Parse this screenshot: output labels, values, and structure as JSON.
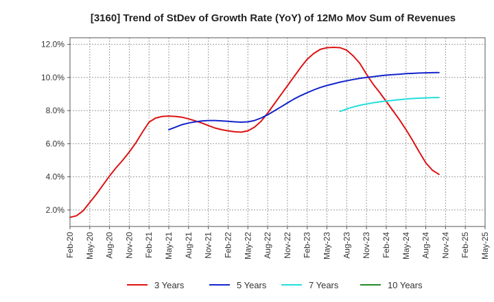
{
  "chart_data": {
    "type": "line",
    "title": "[3160]  Trend of StDev of Growth Rate (YoY) of 12Mo Mov Sum of Revenues",
    "xlabel": "",
    "ylabel": "",
    "x_ticks": [
      "Feb-20",
      "May-20",
      "Aug-20",
      "Nov-20",
      "Feb-21",
      "May-21",
      "Aug-21",
      "Nov-21",
      "Feb-22",
      "May-22",
      "Aug-22",
      "Nov-22",
      "Feb-23",
      "May-23",
      "Aug-23",
      "Nov-23",
      "Feb-24",
      "May-24",
      "Aug-24",
      "Nov-24",
      "Feb-25",
      "May-25"
    ],
    "y_ticks": [
      "2.0%",
      "4.0%",
      "6.0%",
      "8.0%",
      "10.0%",
      "12.0%"
    ],
    "y_tick_values": [
      2,
      4,
      6,
      8,
      10,
      12
    ],
    "ylim": [
      1,
      12.4
    ],
    "x_range_months": [
      0,
      63
    ],
    "grid": true,
    "legend_position": "bottom",
    "series": [
      {
        "name": "3 Years",
        "color": "#dd1111",
        "x_months": [
          0,
          1,
          2,
          3,
          4,
          5,
          6,
          7,
          8,
          9,
          10,
          11,
          12,
          13,
          14,
          15,
          16,
          17,
          18,
          19,
          20,
          21,
          22,
          23,
          24,
          25,
          26,
          27,
          28,
          29,
          30,
          31,
          32,
          33,
          34,
          35,
          36,
          37,
          38,
          39,
          40,
          41,
          42,
          43,
          44,
          45,
          46,
          47,
          48,
          49,
          50,
          51,
          52,
          53,
          54,
          55,
          56,
          57,
          58,
          59,
          60,
          61,
          62,
          63
        ],
        "values": [
          1.55,
          1.65,
          1.95,
          2.45,
          2.95,
          3.5,
          4.05,
          4.55,
          5.0,
          5.5,
          6.05,
          6.7,
          7.3,
          7.55,
          7.65,
          7.67,
          7.65,
          7.6,
          7.5,
          7.38,
          7.25,
          7.1,
          6.95,
          6.85,
          6.78,
          6.72,
          6.7,
          6.78,
          7.0,
          7.35,
          7.85,
          8.4,
          8.95,
          9.5,
          10.05,
          10.6,
          11.1,
          11.45,
          11.7,
          11.8,
          11.82,
          11.8,
          11.65,
          11.3,
          10.85,
          10.2,
          9.6,
          9.1,
          8.55,
          8.0,
          7.45,
          6.85,
          6.2,
          5.5,
          4.85,
          4.4,
          4.15,
          null,
          null,
          null,
          null,
          null,
          null,
          null
        ]
      },
      {
        "name": "5 Years",
        "color": "#1122cc",
        "x_months": [
          15,
          16,
          17,
          18,
          19,
          20,
          21,
          22,
          23,
          24,
          25,
          26,
          27,
          28,
          29,
          30,
          31,
          32,
          33,
          34,
          35,
          36,
          37,
          38,
          39,
          40,
          41,
          42,
          43,
          44,
          45,
          46,
          47,
          48,
          49,
          50,
          51,
          52,
          53,
          54,
          55,
          56
        ],
        "values": [
          6.85,
          7.0,
          7.15,
          7.25,
          7.32,
          7.37,
          7.4,
          7.4,
          7.38,
          7.35,
          7.32,
          7.3,
          7.32,
          7.4,
          7.55,
          7.75,
          7.98,
          8.22,
          8.46,
          8.7,
          8.9,
          9.08,
          9.25,
          9.4,
          9.52,
          9.62,
          9.72,
          9.8,
          9.88,
          9.95,
          10.0,
          10.05,
          10.1,
          10.14,
          10.17,
          10.2,
          10.23,
          10.25,
          10.27,
          10.28,
          10.29,
          10.3
        ]
      },
      {
        "name": "7 Years",
        "color": "#22dddd",
        "x_months": [
          41,
          42,
          43,
          44,
          45,
          46,
          47,
          48,
          49,
          50,
          51,
          52,
          53,
          54,
          55,
          56
        ],
        "values": [
          7.95,
          8.1,
          8.22,
          8.32,
          8.4,
          8.47,
          8.53,
          8.58,
          8.62,
          8.66,
          8.7,
          8.73,
          8.75,
          8.77,
          8.78,
          8.79
        ]
      },
      {
        "name": "10 Years",
        "color": "#228822",
        "x_months": [],
        "values": []
      }
    ]
  }
}
